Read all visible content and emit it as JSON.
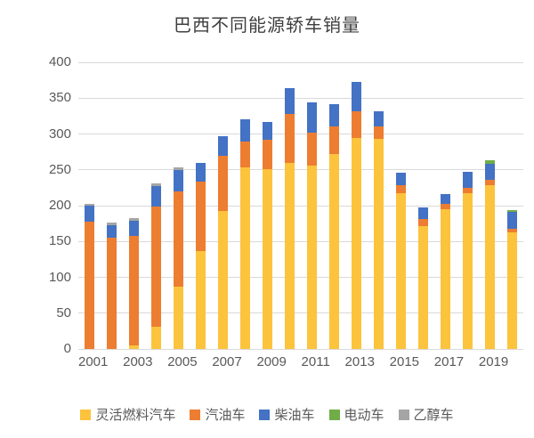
{
  "chart_data": {
    "type": "bar",
    "stacked": true,
    "title": "巴西不同能源轿车销量",
    "xlabel": "",
    "ylabel": "",
    "ylim": [
      0,
      400
    ],
    "y_ticks": [
      0,
      50,
      100,
      150,
      200,
      250,
      300,
      350,
      400
    ],
    "grid": true,
    "legend_position": "bottom",
    "categories": [
      "2001",
      "2002",
      "2003",
      "2004",
      "2005",
      "2006",
      "2007",
      "2008",
      "2009",
      "2010",
      "2011",
      "2012",
      "2013",
      "2014",
      "2015",
      "2016",
      "2017",
      "2018",
      "2019",
      "2020"
    ],
    "x_tick_labels_shown": [
      "2001",
      "2003",
      "2005",
      "2007",
      "2009",
      "2011",
      "2013",
      "2015",
      "2017",
      "2019"
    ],
    "series": [
      {
        "name": "灵活燃料汽车",
        "color": "#FCC33C",
        "values": [
          0,
          0,
          5,
          31,
          87,
          137,
          192,
          253,
          251,
          260,
          256,
          272,
          295,
          293,
          217,
          172,
          195,
          217,
          228,
          163
        ]
      },
      {
        "name": "汽油车",
        "color": "#ED7D31",
        "values": [
          178,
          155,
          153,
          168,
          133,
          97,
          77,
          37,
          41,
          68,
          46,
          38,
          37,
          17,
          11,
          10,
          7,
          8,
          8,
          5
        ]
      },
      {
        "name": "柴油车",
        "color": "#4472C4",
        "values": [
          22,
          18,
          21,
          28,
          30,
          26,
          28,
          30,
          25,
          36,
          42,
          32,
          41,
          22,
          18,
          16,
          14,
          22,
          23,
          23
        ]
      },
      {
        "name": "电动车",
        "color": "#70AD47",
        "values": [
          0,
          0,
          0,
          0,
          0,
          0,
          0,
          0,
          0,
          0,
          0,
          0,
          0,
          0,
          0,
          0,
          0,
          0,
          5,
          3
        ]
      },
      {
        "name": "乙醇车",
        "color": "#A5A5A5",
        "values": [
          2,
          4,
          4,
          4,
          3,
          0,
          0,
          0,
          0,
          0,
          0,
          0,
          0,
          0,
          0,
          0,
          0,
          0,
          0,
          0
        ]
      }
    ]
  },
  "colors": {
    "gridline": "#d9d9d9",
    "axis_text": "#595959",
    "title_text": "#3f3f3f"
  }
}
